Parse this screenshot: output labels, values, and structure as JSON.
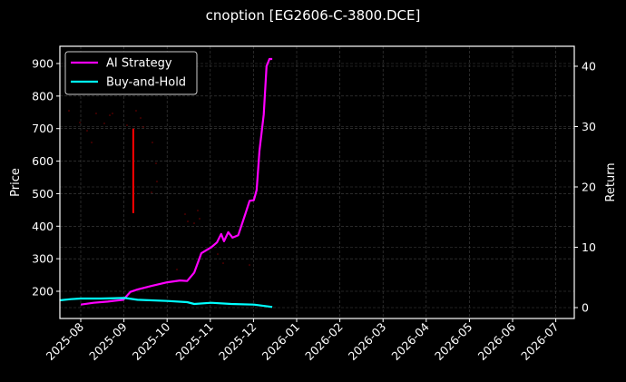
{
  "chart_data": {
    "type": "line",
    "title": "cnoption [EG2606-C-3800.DCE]",
    "xlabel": "",
    "ylabel_left": "Price",
    "ylabel_right": "Return",
    "ylim_left": [
      145,
      955
    ],
    "ylim_right": [
      -1.5,
      43.5
    ],
    "yticks_left": [
      200,
      300,
      400,
      500,
      600,
      700,
      800,
      900
    ],
    "yticks_right": [
      0,
      10,
      20,
      30,
      40
    ],
    "xticks": [
      "2025-08",
      "2025-09",
      "2025-10",
      "2025-11",
      "2025-12",
      "2026-01",
      "2026-02",
      "2026-03",
      "2026-04",
      "2026-05",
      "2026-06",
      "2026-07"
    ],
    "grid": true,
    "legend_position": "upper left",
    "background": "#000000",
    "series": [
      {
        "name": "AI Strategy",
        "axis": "right",
        "color": "#ff00ff",
        "x": [
          "2025-08-01",
          "2025-08-10",
          "2025-08-20",
          "2025-08-31",
          "2025-09-05",
          "2025-09-10",
          "2025-09-20",
          "2025-10-01",
          "2025-10-10",
          "2025-10-15",
          "2025-10-20",
          "2025-10-25",
          "2025-11-01",
          "2025-11-05",
          "2025-11-08",
          "2025-11-10",
          "2025-11-13",
          "2025-11-16",
          "2025-11-20",
          "2025-11-25",
          "2025-11-28",
          "2025-12-01",
          "2025-12-03",
          "2025-12-05",
          "2025-12-08",
          "2025-12-10",
          "2025-12-12",
          "2025-12-14"
        ],
        "values": [
          0.5,
          0.8,
          1.0,
          1.3,
          2.6,
          3.0,
          3.6,
          4.2,
          4.5,
          4.4,
          5.8,
          9.0,
          10.0,
          10.8,
          12.2,
          11.0,
          12.5,
          11.6,
          12.0,
          15.5,
          17.7,
          17.8,
          19.5,
          26.0,
          32.0,
          40.0,
          41.2,
          41.2
        ]
      },
      {
        "name": "Buy-and-Hold",
        "axis": "right",
        "color": "#00ffff",
        "x": [
          "2025-07-17",
          "2025-07-25",
          "2025-08-01",
          "2025-08-15",
          "2025-09-01",
          "2025-09-10",
          "2025-10-01",
          "2025-10-15",
          "2025-10-20",
          "2025-11-01",
          "2025-11-15",
          "2025-12-01",
          "2025-12-14"
        ],
        "values": [
          1.2,
          1.4,
          1.5,
          1.5,
          1.6,
          1.3,
          1.1,
          0.9,
          0.6,
          0.8,
          0.6,
          0.5,
          0.1
        ]
      },
      {
        "name": "Price",
        "axis": "left",
        "color": "#ff0000",
        "type": "sparse points / vertical segment",
        "x": [
          "2025-09-07",
          "2025-09-07"
        ],
        "values": [
          440,
          700
        ]
      }
    ]
  },
  "legend": {
    "items": [
      {
        "label": "AI Strategy",
        "color": "#ff00ff"
      },
      {
        "label": "Buy-and-Hold",
        "color": "#00ffff"
      }
    ]
  }
}
